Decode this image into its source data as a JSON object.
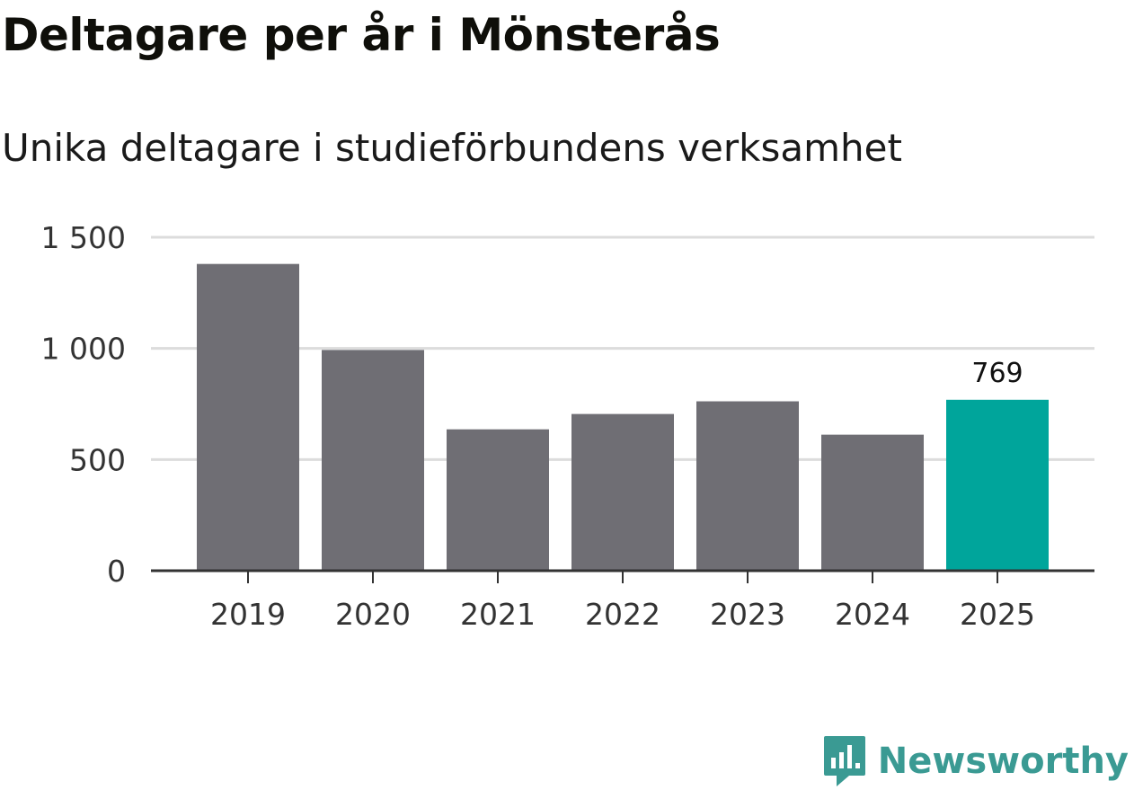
{
  "title": "Deltagare per år i Mönsterås",
  "subtitle": "Unika deltagare i studieförbundens verksamhet",
  "brand": {
    "name": "Newsworthy",
    "color": "#3a9a93"
  },
  "colors": {
    "bar": "#6f6e74",
    "highlight": "#00a59b",
    "grid": "#dcdcdc",
    "axis": "#333333"
  },
  "chart_data": {
    "type": "bar",
    "title": "Deltagare per år i Mönsterås",
    "subtitle": "Unika deltagare i studieförbundens verksamhet",
    "categories": [
      "2019",
      "2020",
      "2021",
      "2022",
      "2023",
      "2024",
      "2025"
    ],
    "values": [
      1380,
      993,
      636,
      705,
      762,
      612,
      769
    ],
    "highlight_index": 6,
    "data_labels": [
      {
        "index": 6,
        "text": "769"
      }
    ],
    "ylim": [
      0,
      1500
    ],
    "yticks": [
      0,
      500,
      1000,
      1500
    ],
    "ytick_labels": [
      "0",
      "500",
      "1 000",
      "1 500"
    ],
    "xlabel": "",
    "ylabel": "",
    "grid": true
  }
}
